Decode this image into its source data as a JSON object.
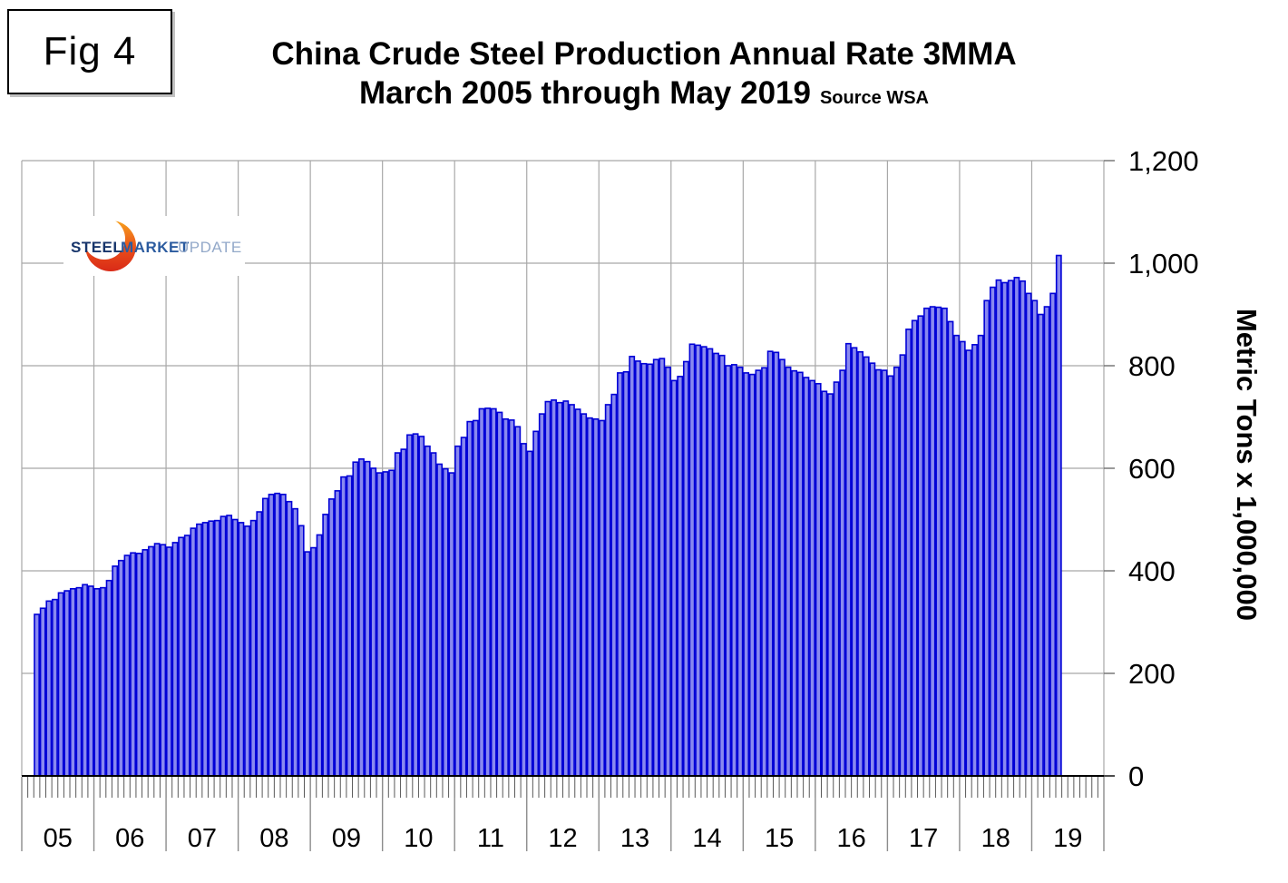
{
  "fig_label": "Fig 4",
  "title": {
    "line1": "China Crude Steel Production Annual Rate 3MMA",
    "line2": "March 2005 through May 2019",
    "source": "Source WSA"
  },
  "logo": {
    "word1": "STEEL",
    "word2": "MARKET",
    "word3": "UPDATE"
  },
  "y_axis": {
    "title": "Metric Tons x 1,000,000",
    "tick_labels": [
      "0",
      "200",
      "400",
      "600",
      "800",
      "1,000",
      "1,200"
    ],
    "min": 0,
    "max": 1200,
    "step": 200
  },
  "x_axis": {
    "year_labels": [
      "05",
      "06",
      "07",
      "08",
      "09",
      "10",
      "11",
      "12",
      "13",
      "14",
      "15",
      "16",
      "17",
      "18",
      "19"
    ]
  },
  "colors": {
    "bar_fill": "#8989ef",
    "bar_stroke": "#0000d6",
    "grid": "#a8a8a8",
    "axis": "#000000",
    "month_tick": "#595959",
    "year_separator": "#8c8c8c",
    "logo_orange_top": "#f7a11c",
    "logo_orange_bottom": "#d92a17",
    "logo_navy": "#17356b",
    "logo_blue": "#2b5b9f",
    "logo_lightblue": "#93a9c9"
  },
  "chart_data": {
    "type": "bar",
    "title": "China Crude Steel Production Annual Rate 3MMA",
    "subtitle": "March 2005 through May 2019",
    "source": "Source WSA",
    "ylabel": "Metric Tons x 1,000,000",
    "ylim": [
      0,
      1200
    ],
    "grid": true,
    "x_freq": "monthly",
    "x_start": "2005-03",
    "x_end": "2019-05",
    "series": [
      {
        "name": "China crude steel production annual rate, 3-month moving average (million metric tons)",
        "values": [
          315,
          327,
          341,
          344,
          357,
          361,
          365,
          367,
          373,
          370,
          365,
          367,
          381,
          409,
          420,
          430,
          435,
          434,
          441,
          447,
          453,
          451,
          446,
          455,
          465,
          469,
          483,
          491,
          494,
          497,
          498,
          506,
          508,
          500,
          494,
          487,
          498,
          515,
          541,
          549,
          551,
          549,
          535,
          521,
          488,
          437,
          445,
          470,
          510,
          540,
          556,
          583,
          585,
          612,
          618,
          613,
          600,
          591,
          593,
          596,
          630,
          637,
          665,
          667,
          662,
          643,
          630,
          608,
          599,
          591,
          643,
          660,
          691,
          693,
          716,
          717,
          716,
          709,
          696,
          694,
          681,
          648,
          633,
          672,
          706,
          730,
          733,
          728,
          731,
          724,
          715,
          706,
          698,
          696,
          693,
          724,
          744,
          786,
          788,
          818,
          809,
          804,
          803,
          812,
          814,
          797,
          771,
          779,
          808,
          842,
          840,
          837,
          833,
          824,
          820,
          800,
          802,
          797,
          786,
          783,
          791,
          796,
          828,
          826,
          812,
          797,
          790,
          787,
          777,
          771,
          765,
          750,
          745,
          768,
          791,
          843,
          835,
          827,
          817,
          805,
          792,
          791,
          780,
          797,
          821,
          871,
          888,
          897,
          912,
          915,
          914,
          912,
          886,
          859,
          847,
          830,
          841,
          859,
          927,
          953,
          967,
          962,
          966,
          972,
          965,
          941,
          927,
          900,
          915,
          941,
          1015
        ]
      }
    ]
  }
}
